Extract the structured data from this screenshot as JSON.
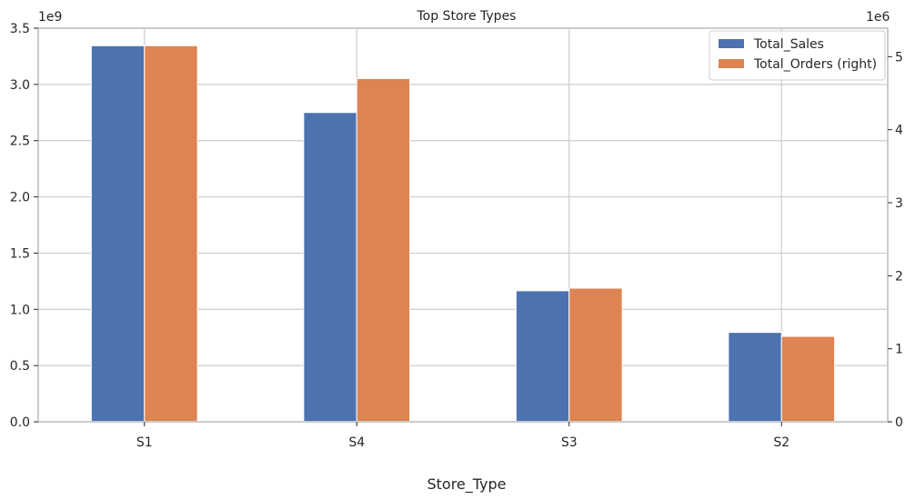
{
  "chart_data": {
    "type": "bar",
    "title": "Top Store Types",
    "xlabel": "Store_Type",
    "ylabel": "",
    "categories": [
      "S1",
      "S4",
      "S3",
      "S2"
    ],
    "series": [
      {
        "name": "Total_Sales",
        "axis": "left",
        "color": "#4c72b0",
        "values": [
          3344000000,
          2750000000,
          1165000000,
          795000000
        ]
      },
      {
        "name": "Total_Orders (right)",
        "axis": "right",
        "color": "#dd8452",
        "values": [
          5150000,
          4700000,
          1830000,
          1170000
        ]
      }
    ],
    "left_axis": {
      "ylim": [
        0,
        3500000000
      ],
      "multiplier_label": "1e9",
      "ticks": [
        0,
        500000000,
        1000000000,
        1500000000,
        2000000000,
        2500000000,
        3000000000,
        3500000000
      ],
      "tick_labels": [
        "0.0",
        "0.5",
        "1.0",
        "1.5",
        "2.0",
        "2.5",
        "3.0",
        "3.5"
      ]
    },
    "right_axis": {
      "ylim": [
        0,
        5390000
      ],
      "multiplier_label": "1e6",
      "ticks": [
        0,
        1000000,
        2000000,
        3000000,
        4000000,
        5000000
      ],
      "tick_labels": [
        "0",
        "1",
        "2",
        "3",
        "4",
        "5"
      ]
    },
    "grid": true,
    "legend": {
      "position": "top-right",
      "entries": [
        "Total_Sales",
        "Total_Orders (right)"
      ]
    },
    "colors": {
      "grid": "#cccccc",
      "spine": "#cccccc",
      "text": "#262626",
      "background": "#ffffff"
    }
  }
}
